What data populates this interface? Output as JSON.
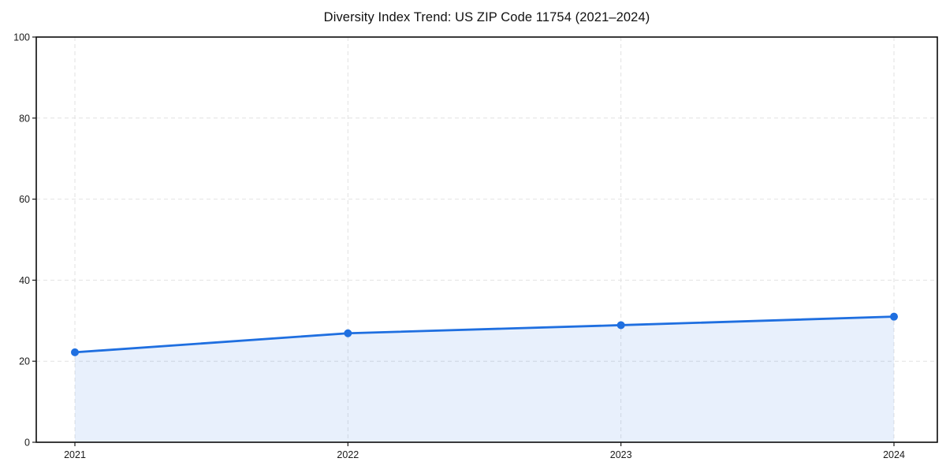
{
  "title": "Diversity Index Trend: US ZIP Code 11754 (2021–2024)",
  "chart_data": {
    "type": "area",
    "title": "Diversity Index Trend: US ZIP Code 11754 (2021–2024)",
    "categories": [
      "2021",
      "2022",
      "2023",
      "2024"
    ],
    "series": [
      {
        "name": "Diversity Index",
        "values": [
          22.2,
          26.9,
          28.9,
          31.0
        ]
      }
    ],
    "xlabel": "",
    "ylabel": "",
    "ylim": [
      0,
      100
    ],
    "y_ticks": [
      0,
      20,
      40,
      60,
      80,
      100
    ],
    "grid": true,
    "grid_style": "dashed",
    "legend": "none",
    "colors": {
      "line": "#1f6fe0",
      "marker": "#1f6fe0",
      "fill": "#1f6fe0",
      "fill_opacity": 0.1,
      "grid": "#e2e2e2",
      "spine": "#0a0a0a",
      "tick": "#1a1a1a",
      "tick_label": "#1a1a1a",
      "background": "#ffffff"
    }
  }
}
